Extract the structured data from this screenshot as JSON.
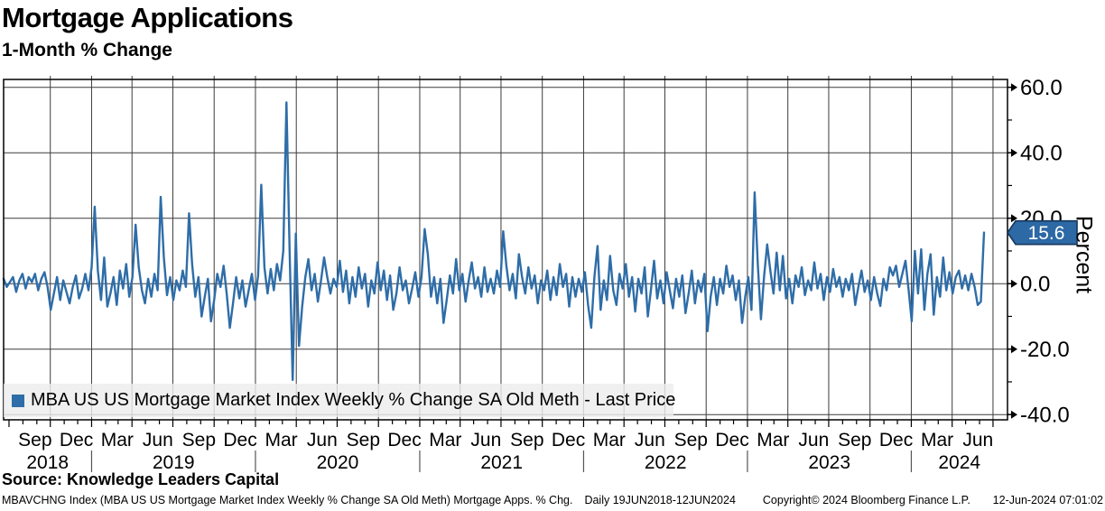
{
  "header": {
    "title": "Mortgage Applications",
    "subtitle": "1-Month % Change"
  },
  "legend": {
    "label": "MBA US US Mortgage Market Index Weekly % Change SA Old Meth - Last Price"
  },
  "footer": {
    "source": "Source: Knowledge Leaders Capital",
    "index_info": "MBAVCHNG Index (MBA US US Mortgage Market Index Weekly % Change SA Old Meth) Mortgage Apps. % Chg.",
    "daily_range": "Daily 19JUN2018-12JUN2024",
    "copyright": "Copyright© 2024 Bloomberg Finance L.P.",
    "timestamp": "12-Jun-2024 07:01:02"
  },
  "colors": {
    "accent_blue": "#2e6da8",
    "badge_fill": "#2c69a5",
    "badge_border": "#16365c",
    "grid": "#3c3c3c",
    "axis": "#000000",
    "legend_bg": "#ededed",
    "background": "#ffffff",
    "text": "#000000"
  },
  "chart_data": {
    "type": "line",
    "title": "Mortgage Applications",
    "subtitle": "1-Month % Change",
    "ylabel": "Percent",
    "ylim": [
      -41.6,
      62.4
    ],
    "ytick_values": [
      60,
      40,
      20,
      0,
      -20,
      -40
    ],
    "ytick_labels": [
      "60.0",
      "40.0",
      "20.0",
      "0.0",
      "-20.0",
      "-40.0"
    ],
    "yminor_values": [
      50,
      30,
      10,
      -10,
      -30
    ],
    "grid": true,
    "legend_position": "bottom-left",
    "x_start": "2018-06-19",
    "x_end": "2024-06-12",
    "frequency": "weekly",
    "x_month_labels": [
      "Sep",
      "Dec",
      "Mar",
      "Jun",
      "Sep",
      "Dec",
      "Mar",
      "Jun",
      "Sep",
      "Dec",
      "Mar",
      "Jun",
      "Sep",
      "Dec",
      "Mar",
      "Jun",
      "Sep",
      "Dec",
      "Mar",
      "Jun",
      "Sep",
      "Dec",
      "Mar",
      "Jun"
    ],
    "x_year_labels": [
      "2018",
      "2019",
      "2020",
      "2021",
      "2022",
      "2023",
      "2024"
    ],
    "last_price": 15.6,
    "last_price_label": "15.6",
    "series": [
      {
        "name": "MBA US US Mortgage Market Index Weekly % Change SA Old Meth - Last Price",
        "color": "#2e6da8",
        "values": [
          1.5,
          -1.0,
          0.5,
          2.0,
          -2.5,
          1.0,
          3.0,
          -1.5,
          2.0,
          0.5,
          3.0,
          -2.0,
          1.5,
          3.5,
          -1.0,
          -8.0,
          -3.0,
          2.0,
          -5.0,
          1.0,
          -2.5,
          -6.0,
          -1.0,
          2.5,
          -4.5,
          -1.5,
          3.0,
          -2.0,
          5.0,
          23.5,
          4.0,
          -5.0,
          8.0,
          -7.0,
          -3.0,
          2.0,
          -6.5,
          4.0,
          -1.5,
          6.0,
          -4.0,
          2.0,
          18.0,
          5.0,
          -2.0,
          -6.0,
          1.5,
          -4.0,
          3.0,
          -2.0,
          26.5,
          8.0,
          -3.5,
          2.0,
          -5.0,
          1.0,
          -2.0,
          4.0,
          -1.0,
          21.5,
          6.0,
          -4.0,
          2.0,
          -10.0,
          -4.0,
          1.5,
          -11.5,
          -5.0,
          3.0,
          -1.0,
          5.5,
          -3.0,
          -13.5,
          -6.0,
          2.0,
          -4.5,
          1.0,
          -7.0,
          -2.0,
          3.0,
          -5.0,
          2.5,
          30.2,
          5.0,
          -3.0,
          4.5,
          -2.0,
          6.0,
          1.0,
          10.0,
          55.4,
          10.0,
          -29.4,
          15.3,
          -19.0,
          -7.0,
          2.0,
          7.5,
          -2.0,
          3.0,
          -5.5,
          1.0,
          8.0,
          2.0,
          -3.0,
          1.5,
          -1.0,
          7.0,
          -2.5,
          4.0,
          -6.0,
          2.0,
          -4.0,
          5.0,
          -1.5,
          3.0,
          -7.0,
          1.0,
          -3.0,
          6.5,
          -2.0,
          4.0,
          -5.0,
          2.5,
          -8.0,
          -3.0,
          5.0,
          -2.0,
          1.0,
          -6.0,
          -1.5,
          3.5,
          -4.0,
          2.0,
          16.7,
          9.0,
          -4.0,
          2.0,
          -6.0,
          1.5,
          -12.0,
          -5.0,
          2.5,
          -3.0,
          7.5,
          -2.0,
          3.0,
          -5.5,
          1.0,
          6.5,
          -1.5,
          2.0,
          -4.0,
          5.0,
          -2.5,
          1.5,
          -3.0,
          4.0,
          -1.0,
          16.0,
          5.5,
          -2.0,
          3.0,
          -4.5,
          9.0,
          2.0,
          -3.0,
          5.0,
          -1.5,
          2.5,
          -6.0,
          1.0,
          -2.0,
          4.0,
          -5.0,
          2.0,
          -3.5,
          6.0,
          -1.0,
          3.0,
          -7.0,
          2.0,
          -4.0,
          1.5,
          -2.5,
          3.5,
          -6.5,
          -13.5,
          2.0,
          11.5,
          -8.0,
          1.0,
          -5.0,
          8.5,
          -2.0,
          -6.5,
          3.0,
          -1.5,
          6.0,
          -4.0,
          2.0,
          -8.5,
          1.5,
          -3.0,
          5.0,
          -10.0,
          -2.0,
          7.0,
          -4.5,
          1.0,
          -6.0,
          3.5,
          -2.0,
          -7.5,
          1.5,
          -4.0,
          2.5,
          -9.0,
          -3.0,
          4.0,
          -6.0,
          1.0,
          -2.5,
          3.0,
          -14.5,
          -4.0,
          2.0,
          -6.5,
          1.5,
          -3.0,
          5.5,
          -1.0,
          2.5,
          -5.0,
          1.0,
          -12.0,
          -4.0,
          2.0,
          -8.0,
          27.9,
          6.0,
          -10.9,
          2.0,
          12.0,
          4.0,
          -3.0,
          9.5,
          -2.0,
          8.5,
          -4.5,
          1.5,
          -6.0,
          2.5,
          -1.0,
          5.0,
          -3.5,
          1.0,
          -2.0,
          6.5,
          -1.5,
          3.0,
          -5.0,
          2.0,
          -2.5,
          4.5,
          -1.0,
          2.0,
          -4.0,
          1.5,
          -2.0,
          3.0,
          -6.5,
          -1.0,
          4.0,
          -2.5,
          1.0,
          -5.0,
          2.0,
          -3.0,
          -6.8,
          1.5,
          -2.0,
          5.0,
          2.5,
          5.5,
          -1.0,
          3.0,
          7.0,
          -2.0,
          -11.5,
          10.0,
          -3.0,
          10.5,
          -8.0,
          3.0,
          9.0,
          -9.5,
          2.0,
          -4.0,
          8.0,
          -2.0,
          3.5,
          -3.0,
          2.0,
          4.0,
          -1.5,
          2.5,
          -2.0,
          3.0,
          -1.0,
          -6.5,
          -5.5,
          15.6
        ]
      }
    ]
  }
}
